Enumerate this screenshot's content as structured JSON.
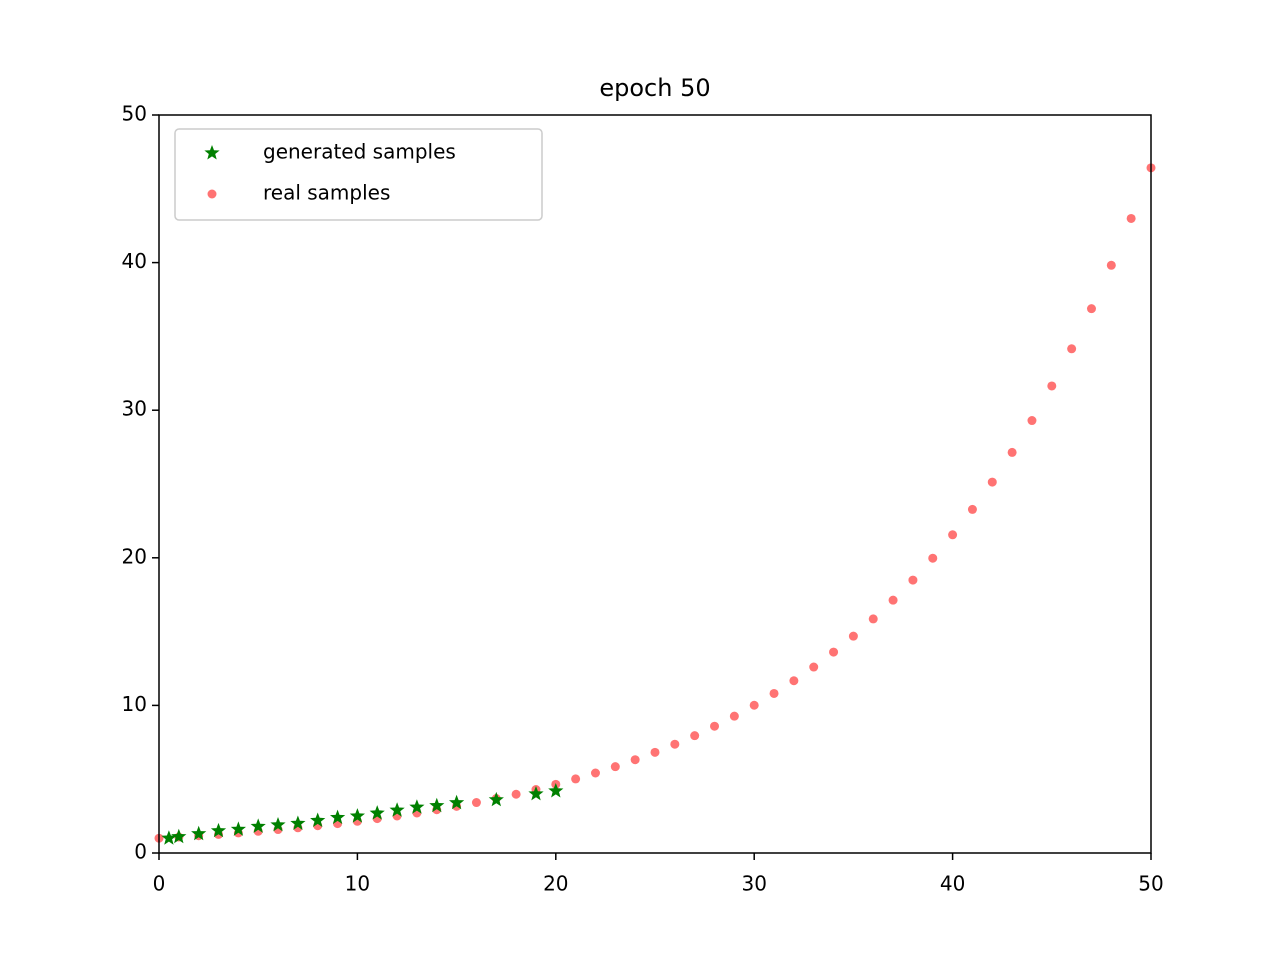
{
  "chart_data": {
    "type": "scatter",
    "title": "epoch 50",
    "xlim": [
      0,
      50
    ],
    "ylim": [
      0,
      50
    ],
    "xticks": [
      0,
      10,
      20,
      30,
      40,
      50
    ],
    "yticks": [
      0,
      10,
      20,
      30,
      40,
      50
    ],
    "legend": "upper left",
    "series": [
      {
        "name": "generated samples",
        "color": "#008000",
        "marker": "star",
        "x": [
          0.5,
          1,
          2,
          3,
          4,
          5,
          6,
          7,
          8,
          9,
          10,
          11,
          12,
          13,
          14,
          15,
          17,
          19,
          20
        ],
        "values": [
          1.0,
          1.1,
          1.3,
          1.5,
          1.6,
          1.8,
          1.9,
          2.0,
          2.2,
          2.4,
          2.5,
          2.7,
          2.9,
          3.1,
          3.2,
          3.4,
          3.6,
          4.0,
          4.2
        ]
      },
      {
        "name": "real samples",
        "color": "#ff0000",
        "marker": "circle",
        "x": [
          0,
          1,
          2,
          3,
          4,
          5,
          6,
          7,
          8,
          9,
          10,
          11,
          12,
          13,
          14,
          15,
          16,
          17,
          18,
          19,
          20,
          21,
          22,
          23,
          24,
          25,
          26,
          27,
          28,
          29,
          30,
          31,
          32,
          33,
          34,
          35,
          36,
          37,
          38,
          39,
          40,
          41,
          42,
          43,
          44,
          45,
          46,
          47,
          48,
          49,
          50
        ],
        "values": [
          1.0,
          1.08,
          1.17,
          1.26,
          1.36,
          1.47,
          1.59,
          1.71,
          1.85,
          1.99,
          2.15,
          2.33,
          2.51,
          2.71,
          2.93,
          3.16,
          3.42,
          3.69,
          3.98,
          4.3,
          4.65,
          5.02,
          5.42,
          5.85,
          6.32,
          6.82,
          7.37,
          7.95,
          8.59,
          9.27,
          10.01,
          10.81,
          11.67,
          12.6,
          13.61,
          14.69,
          15.86,
          17.13,
          18.49,
          19.97,
          21.56,
          23.28,
          25.13,
          27.14,
          29.3,
          31.64,
          34.16,
          36.88,
          39.82,
          42.99,
          46.42
        ]
      }
    ]
  }
}
